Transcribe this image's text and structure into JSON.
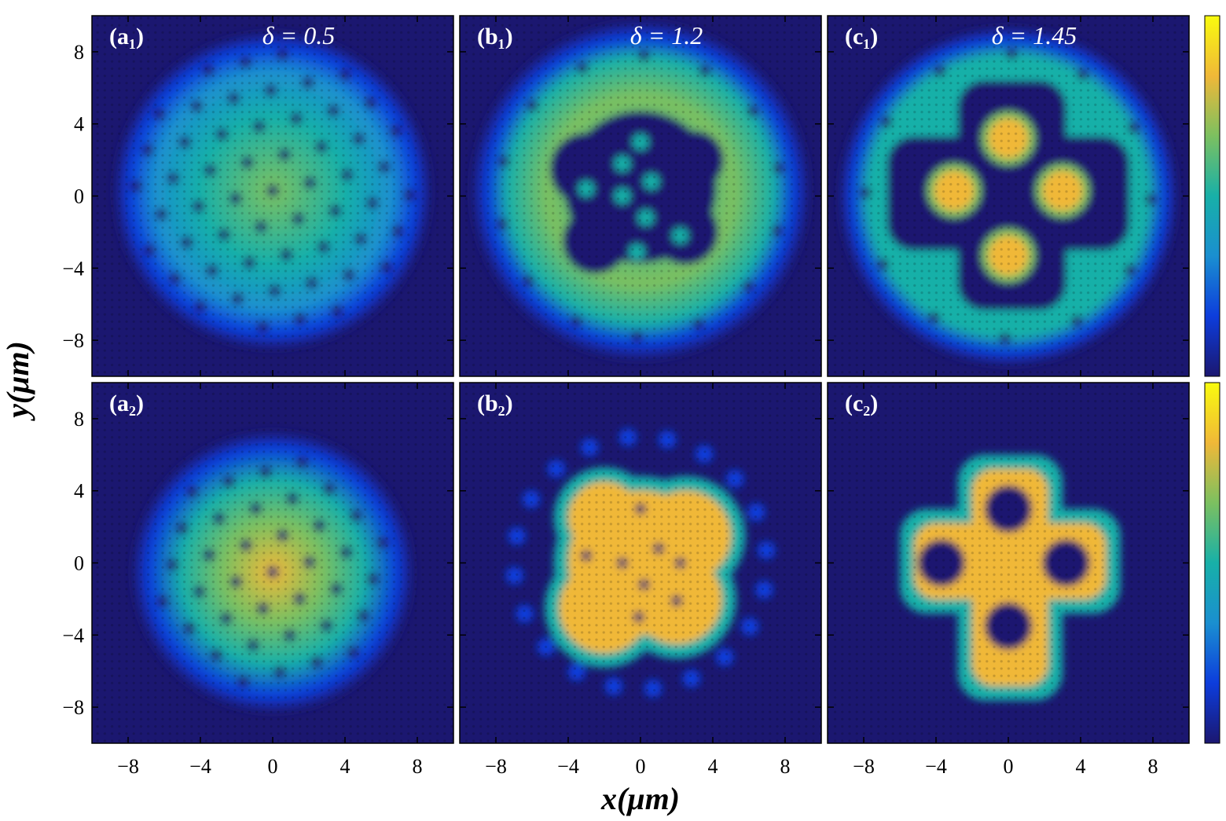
{
  "chart_data": [
    {
      "type": "heatmap",
      "panel_label": "(a₁)",
      "title": "δ = 0.5",
      "xlim": [
        -10,
        10
      ],
      "ylim": [
        -10,
        10
      ],
      "xticks": [
        {
          "value": -8,
          "label": "−8"
        },
        {
          "value": -4,
          "label": "−4"
        },
        0,
        4,
        8
      ],
      "yticks": [
        {
          "value": -8,
          "label": "−8"
        },
        {
          "value": -4,
          "label": "−4"
        },
        0,
        4,
        8
      ]
    },
    {
      "type": "heatmap",
      "panel_label": "(b₁)",
      "title": "δ = 1.2",
      "xlim": [
        -10,
        10
      ],
      "ylim": [
        -10,
        10
      ],
      "xticks": [
        {
          "value": -8,
          "label": "−8"
        },
        {
          "value": -4,
          "label": "−4"
        },
        0,
        4,
        8
      ],
      "yticks": [
        {
          "value": -8,
          "label": "−8"
        },
        {
          "value": -4,
          "label": "−4"
        },
        0,
        4,
        8
      ]
    },
    {
      "type": "heatmap",
      "panel_label": "(c₁)",
      "title": "δ = 1.45",
      "xlim": [
        -10,
        10
      ],
      "ylim": [
        -10,
        10
      ],
      "xticks": [
        {
          "value": -8,
          "label": "−8"
        },
        {
          "value": -4,
          "label": "−4"
        },
        0,
        4,
        8
      ],
      "yticks": [
        {
          "value": -8,
          "label": "−8"
        },
        {
          "value": -4,
          "label": "−4"
        },
        0,
        4,
        8
      ]
    },
    {
      "type": "heatmap",
      "panel_label": "(a₂)",
      "xlim": [
        -10,
        10
      ],
      "ylim": [
        -10,
        10
      ],
      "xticks": [
        {
          "value": -8,
          "label": "−8"
        },
        {
          "value": -4,
          "label": "−4"
        },
        0,
        4,
        8
      ],
      "yticks": [
        {
          "value": -8,
          "label": "−8"
        },
        {
          "value": -4,
          "label": "−4"
        },
        0,
        4,
        8
      ]
    },
    {
      "type": "heatmap",
      "panel_label": "(b₂)",
      "xlim": [
        -10,
        10
      ],
      "ylim": [
        -10,
        10
      ],
      "xticks": [
        {
          "value": -8,
          "label": "−8"
        },
        {
          "value": -4,
          "label": "−4"
        },
        0,
        4,
        8
      ],
      "yticks": [
        {
          "value": -8,
          "label": "−8"
        },
        {
          "value": -4,
          "label": "−4"
        },
        0,
        4,
        8
      ]
    },
    {
      "type": "heatmap",
      "panel_label": "(c₂)",
      "xlim": [
        -10,
        10
      ],
      "ylim": [
        -10,
        10
      ],
      "xticks": [
        {
          "value": -8,
          "label": "−8"
        },
        {
          "value": -4,
          "label": "−4"
        },
        0,
        4,
        8
      ],
      "yticks": [
        {
          "value": -8,
          "label": "−8"
        },
        {
          "value": -4,
          "label": "−4"
        },
        0,
        4,
        8
      ]
    }
  ],
  "xlabel": "x(μm)",
  "ylabel": "y(μm)",
  "colormap": [
    "#1b1770",
    "#0d3ddc",
    "#1a8fd0",
    "#18b0a8",
    "#7cc060",
    "#f0b838",
    "#f9fb0e"
  ]
}
